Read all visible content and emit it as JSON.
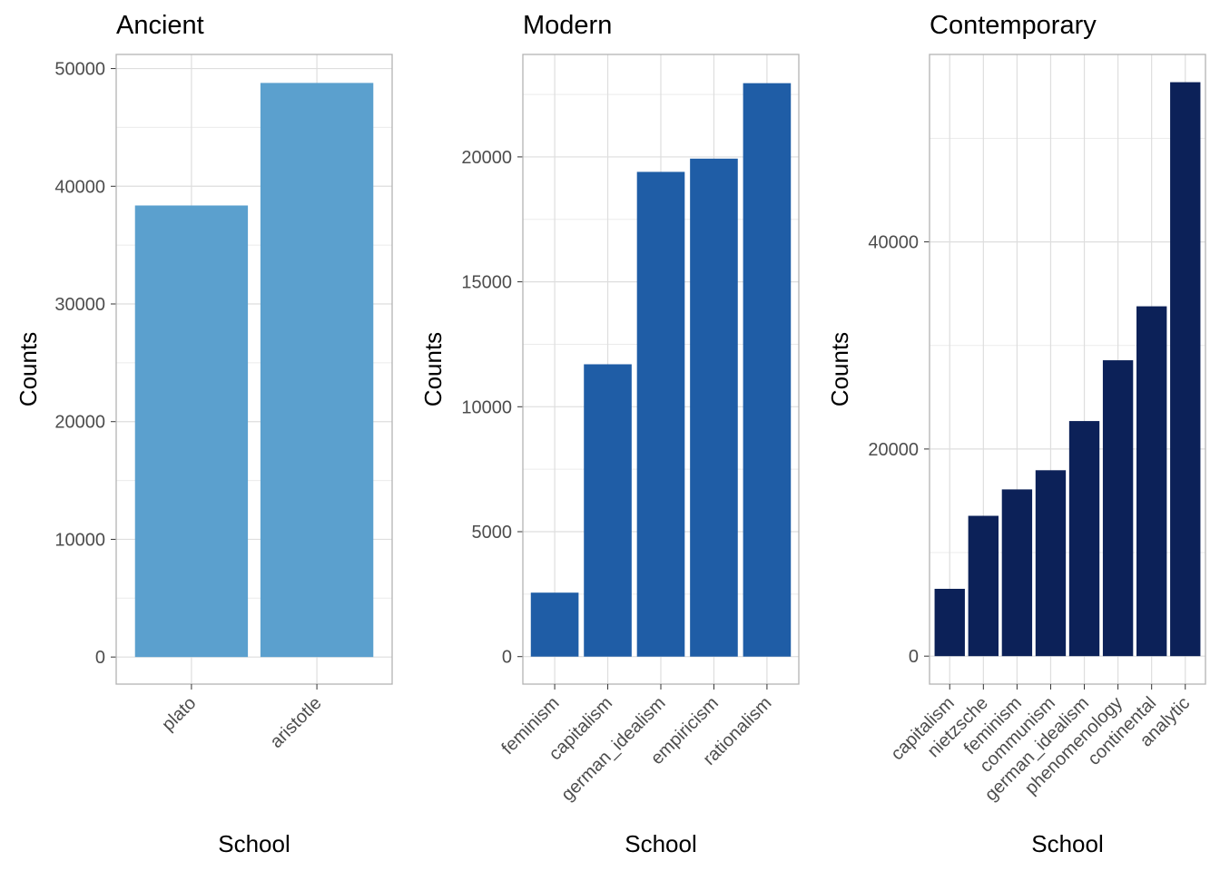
{
  "chart_data": [
    {
      "type": "bar",
      "title": "Ancient",
      "xlabel": "School",
      "ylabel": "Counts",
      "categories": [
        "plato",
        "aristotle"
      ],
      "values": [
        38366,
        48779
      ],
      "ylim": [
        -2300,
        51200
      ],
      "yticks": [
        0,
        10000,
        20000,
        30000,
        40000,
        50000
      ],
      "ytick_labels": [
        "0",
        "10000",
        "20000",
        "30000",
        "40000",
        "50000"
      ],
      "color": "#5BA0CE",
      "grid": true
    },
    {
      "type": "bar",
      "title": "Modern",
      "xlabel": "School",
      "ylabel": "Counts",
      "categories": [
        "feminism",
        "capitalism",
        "german_idealism",
        "empiricism",
        "rationalism"
      ],
      "values": [
        2560,
        11700,
        19400,
        19930,
        22950
      ],
      "ylim": [
        -1100,
        24100
      ],
      "yticks": [
        0,
        5000,
        10000,
        15000,
        20000
      ],
      "ytick_labels": [
        "0",
        "5000",
        "10000",
        "15000",
        "20000"
      ],
      "color": "#1F5DA6",
      "grid": true
    },
    {
      "type": "bar",
      "title": "Contemporary",
      "xlabel": "School",
      "ylabel": "Counts",
      "categories": [
        "capitalism",
        "nietzsche",
        "feminism",
        "communism",
        "german_idealism",
        "phenomenology",
        "continental",
        "analytic"
      ],
      "values": [
        6500,
        13550,
        16100,
        17950,
        22700,
        28570,
        33780,
        55420
      ],
      "ylim": [
        -2700,
        58100
      ],
      "yticks": [
        0,
        20000,
        40000
      ],
      "ytick_labels": [
        "0",
        "20000",
        "40000"
      ],
      "color": "#0C2158",
      "grid": true
    }
  ]
}
